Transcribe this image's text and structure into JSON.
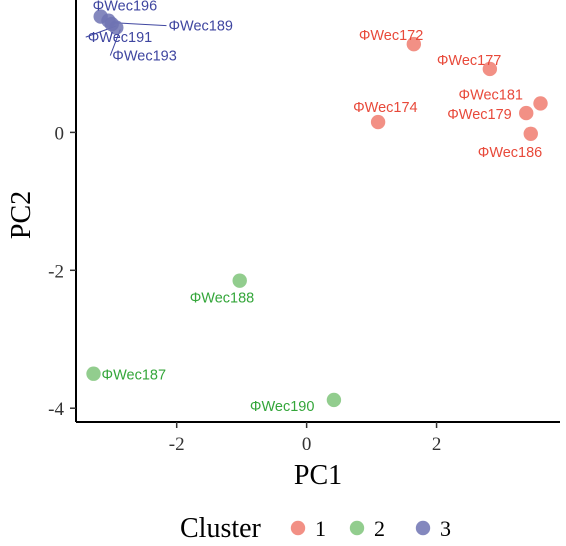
{
  "chart_data": {
    "type": "scatter",
    "title": "",
    "xlabel": "PC1",
    "ylabel": "PC2",
    "xlim": [
      -3.55,
      3.9
    ],
    "ylim": [
      -4.2,
      1.92
    ],
    "x_ticks": [
      -2,
      0,
      2
    ],
    "y_ticks": [
      0,
      -2,
      -4
    ],
    "grid": false,
    "legend": {
      "title": "Cluster",
      "position": "bottom",
      "entries": [
        {
          "label": "1",
          "color": "#F07C70"
        },
        {
          "label": "2",
          "color": "#7FC47A"
        },
        {
          "label": "3",
          "color": "#6E73B3"
        }
      ]
    },
    "series": [
      {
        "name": "1",
        "color": "#F07C70",
        "text_color": "#E8493A",
        "points": [
          {
            "x": 1.65,
            "y": 1.28,
            "label": "ΦWec172"
          },
          {
            "x": 2.82,
            "y": 0.92,
            "label": "ΦWec177"
          },
          {
            "x": 3.6,
            "y": 0.42,
            "label": "ΦWec181"
          },
          {
            "x": 1.1,
            "y": 0.15,
            "label": "ΦWec174"
          },
          {
            "x": 3.38,
            "y": 0.28,
            "label": "ΦWec179"
          },
          {
            "x": 3.45,
            "y": -0.02,
            "label": "ΦWec186"
          }
        ]
      },
      {
        "name": "2",
        "color": "#7FC47A",
        "text_color": "#34A63A",
        "points": [
          {
            "x": -1.03,
            "y": -2.15,
            "label": "ΦWec188"
          },
          {
            "x": -3.28,
            "y": -3.5,
            "label": "ΦWec187"
          },
          {
            "x": 0.42,
            "y": -3.88,
            "label": "ΦWec190"
          }
        ]
      },
      {
        "name": "3",
        "color": "#6E73B3",
        "text_color": "#3F46A0",
        "points": [
          {
            "x": -3.17,
            "y": 1.68,
            "label": "ΦWec196"
          },
          {
            "x": -3.05,
            "y": 1.62,
            "label": "ΦWec189"
          },
          {
            "x": -3.0,
            "y": 1.57,
            "label": "ΦWec191"
          },
          {
            "x": -2.93,
            "y": 1.52,
            "label": "ΦWec193"
          }
        ]
      }
    ]
  }
}
